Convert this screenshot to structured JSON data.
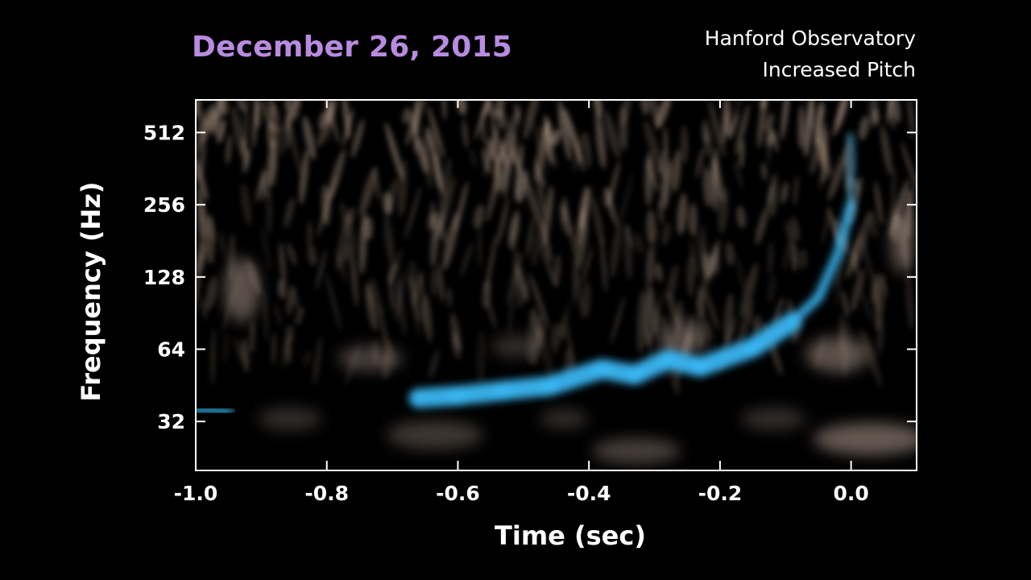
{
  "header": {
    "date": "December 26, 2015",
    "observatory": "Hanford Observatory",
    "mode": "Increased Pitch"
  },
  "colors": {
    "date": "#b98be0",
    "signal": "#3ab6f2",
    "noise": "#c8b0a0",
    "background": "#000000",
    "frame": "#ffffff"
  },
  "chart_data": {
    "type": "heatmap",
    "xlabel": "Time (sec)",
    "ylabel": "Frequency (Hz)",
    "xlim": [
      -1.0,
      0.1
    ],
    "ylim": [
      20,
      700
    ],
    "yscale": "log2",
    "x_ticks": [
      -1.0,
      -0.8,
      -0.6,
      -0.4,
      -0.2,
      0.0
    ],
    "x_tick_labels": [
      "-1.0",
      "-0.8",
      "-0.6",
      "-0.4",
      "-0.2",
      "0.0"
    ],
    "y_ticks": [
      32,
      64,
      128,
      256,
      512
    ],
    "y_tick_labels": [
      "32",
      "64",
      "128",
      "256",
      "512"
    ],
    "grid": false,
    "signal_track": [
      {
        "t": -0.66,
        "f": 40
      },
      {
        "t": -0.6,
        "f": 41
      },
      {
        "t": -0.53,
        "f": 43
      },
      {
        "t": -0.46,
        "f": 45
      },
      {
        "t": -0.38,
        "f": 53
      },
      {
        "t": -0.33,
        "f": 50
      },
      {
        "t": -0.28,
        "f": 58
      },
      {
        "t": -0.23,
        "f": 54
      },
      {
        "t": -0.15,
        "f": 65
      },
      {
        "t": -0.09,
        "f": 83
      },
      {
        "t": -0.05,
        "f": 105
      },
      {
        "t": -0.02,
        "f": 160
      },
      {
        "t": 0.0,
        "f": 256
      },
      {
        "t": 0.0,
        "f": 500
      }
    ],
    "low_frequency_blob": [
      {
        "t": -1.0,
        "f": 36
      },
      {
        "t": -0.95,
        "f": 35
      }
    ]
  }
}
